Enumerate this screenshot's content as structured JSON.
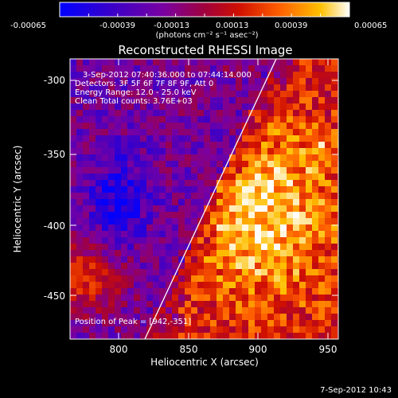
{
  "figure": {
    "title": "Reconstructed RHESSI Image",
    "xlabel": "Heliocentric X (arcsec)",
    "ylabel": "Heliocentric Y (arcsec)",
    "colorbar_unit": "(photons cm⁻² s⁻¹ asec⁻²)",
    "footer_date": "7-Sep-2012 10:43"
  },
  "annotations": {
    "time_range": "3-Sep-2012 07:40:36.000 to 07:44:14.000",
    "detectors": "Detectors: 3F 5F 6F 7F 8F 9F, Att 0",
    "energy_range": "Energy Range: 12.0 - 25.0 keV",
    "clean": "Clean    Total counts: 3.76E+03",
    "peak": "Position of Peak = [942,-351]"
  },
  "colorbar": {
    "min": -0.00065,
    "max": 0.00065,
    "tick_labels": [
      "-0.00065",
      "-0.00039",
      "-0.00013",
      "0.00013",
      "0.00039",
      "0.00065"
    ],
    "colors": [
      "#0000ff",
      "#3a00c8",
      "#7a00a0",
      "#a0003c",
      "#d01000",
      "#ff6000",
      "#ffc000",
      "#ffffff"
    ]
  },
  "axes": {
    "x_ticks": [
      "800",
      "850",
      "900",
      "950"
    ],
    "y_ticks": [
      "-300",
      "-350",
      "-400",
      "-450"
    ],
    "xlim": [
      760,
      952
    ],
    "ylim": [
      -478,
      -288
    ]
  }
}
